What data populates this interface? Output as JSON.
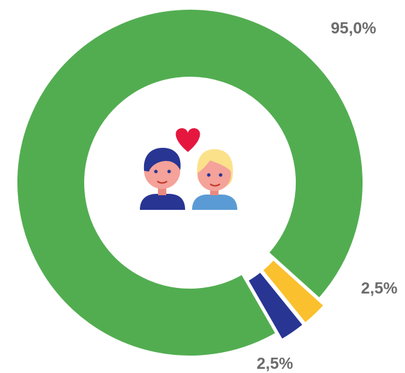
{
  "chart_data": {
    "type": "donut",
    "categories": [
      null,
      null,
      null
    ],
    "series": [
      {
        "name": null,
        "values": [
          95,
          2.5,
          2.5
        ],
        "value_labels": [
          "95,0%",
          "2,5%",
          "2,5%"
        ],
        "colors": [
          "#52ad50",
          "#fbc02d",
          "#283593"
        ]
      }
    ]
  }
}
